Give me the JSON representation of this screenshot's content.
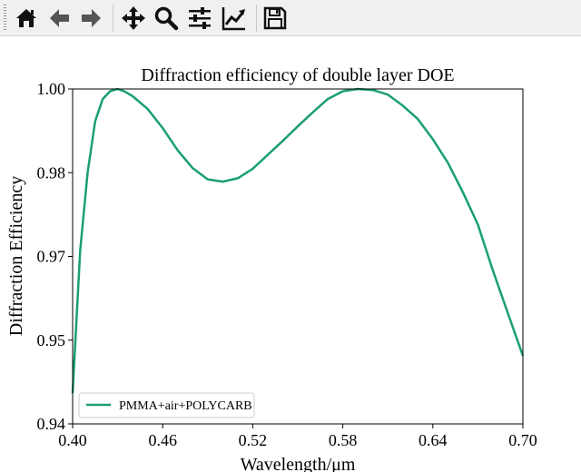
{
  "toolbar": {
    "buttons": [
      {
        "name": "home-icon"
      },
      {
        "name": "back-arrow-icon"
      },
      {
        "name": "forward-arrow-icon"
      },
      {
        "name": "pan-move-icon"
      },
      {
        "name": "zoom-magnifier-icon"
      },
      {
        "name": "configure-subplots-icon"
      },
      {
        "name": "edit-axis-curve-icon"
      },
      {
        "name": "save-floppy-icon"
      }
    ]
  },
  "chart_data": {
    "type": "line",
    "title": "Diffraction efficiency of double layer DOE",
    "xlabel": "Wavelength/μm",
    "ylabel": "Diffraction Efficiency",
    "xlim": [
      0.4,
      0.7
    ],
    "ylim": [
      0.94,
      1.0
    ],
    "x_ticks": [
      "0.40",
      "0.46",
      "0.52",
      "0.58",
      "0.64",
      "0.70"
    ],
    "y_ticks": [
      "0.94",
      "0.95",
      "0.97",
      "0.98",
      "1.00"
    ],
    "y_scale": "tick labels 0.94, 0.95, 0.97, 0.98, 1.00 at equal spacing",
    "legend_position": "lower-left",
    "grid": false,
    "line_color": "#1a9e77",
    "series": [
      {
        "name": "PMMA+air+POLYCARB",
        "x": [
          0.4,
          0.405,
          0.41,
          0.415,
          0.42,
          0.425,
          0.43,
          0.435,
          0.44,
          0.45,
          0.46,
          0.47,
          0.48,
          0.49,
          0.5,
          0.51,
          0.52,
          0.53,
          0.54,
          0.55,
          0.56,
          0.57,
          0.58,
          0.59,
          0.6,
          0.61,
          0.62,
          0.63,
          0.64,
          0.65,
          0.66,
          0.67,
          0.68,
          0.69,
          0.7
        ],
        "y": [
          0.9455,
          0.971,
          0.985,
          0.9942,
          0.9982,
          0.9996,
          1.0,
          0.9995,
          0.9987,
          0.9964,
          0.993,
          0.989,
          0.9858,
          0.9838,
          0.9834,
          0.984,
          0.9857,
          0.9882,
          0.9907,
          0.9933,
          0.9958,
          0.9982,
          0.9996,
          1.0,
          0.9998,
          0.999,
          0.997,
          0.9946,
          0.991,
          0.9868,
          0.9815,
          0.9757,
          0.9675,
          0.9598,
          0.9522
        ]
      }
    ]
  }
}
